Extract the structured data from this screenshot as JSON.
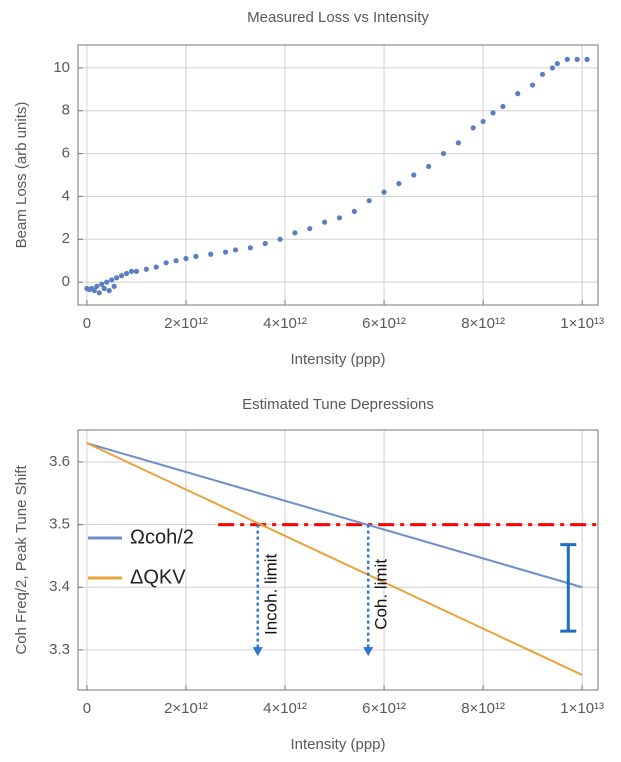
{
  "chart_data": [
    {
      "type": "scatter",
      "title": "Measured Loss vs Intensity",
      "x_label": "Intensity (ppp)",
      "y_label": "Beam Loss (arb units)",
      "xlim": [
        -180000000000.0,
        10320000000000.0
      ],
      "ylim": [
        -1.07,
        11.07
      ],
      "xticks": [
        0,
        {
          "value": 2000000000000.0,
          "label": "2×10¹²"
        },
        {
          "value": 4000000000000.0,
          "label": "4×10¹²"
        },
        {
          "value": 6000000000000.0,
          "label": "6×10¹²"
        },
        {
          "value": 8000000000000.0,
          "label": "8×10¹²"
        },
        {
          "value": 10000000000000.0,
          "label": "1×10¹³"
        }
      ],
      "yticks": [
        0,
        2,
        4,
        6,
        8,
        10
      ],
      "grid": true,
      "color": "#5b7ec2",
      "x": [
        0,
        50000000000.0,
        100000000000.0,
        150000000000.0,
        200000000000.0,
        250000000000.0,
        300000000000.0,
        350000000000.0,
        400000000000.0,
        450000000000.0,
        500000000000.0,
        550000000000.0,
        600000000000.0,
        700000000000.0,
        800000000000.0,
        900000000000.0,
        1000000000000.0,
        1200000000000.0,
        1400000000000.0,
        1600000000000.0,
        1800000000000.0,
        2000000000000.0,
        2200000000000.0,
        2500000000000.0,
        2800000000000.0,
        3000000000000.0,
        3300000000000.0,
        3600000000000.0,
        3900000000000.0,
        4200000000000.0,
        4500000000000.0,
        4800000000000.0,
        5100000000000.0,
        5400000000000.0,
        5700000000000.0,
        6000000000000.0,
        6300000000000.0,
        6600000000000.0,
        6900000000000.0,
        7200000000000.0,
        7500000000000.0,
        7800000000000.0,
        8000000000000.0,
        8200000000000.0,
        8400000000000.0,
        8700000000000.0,
        9000000000000.0,
        9200000000000.0,
        9400000000000.0,
        9500000000000.0,
        9700000000000.0,
        9900000000000.0,
        10100000000000.0
      ],
      "values": [
        -0.3,
        -0.35,
        -0.3,
        -0.4,
        -0.2,
        -0.5,
        -0.1,
        -0.3,
        0,
        -0.4,
        0.1,
        -0.2,
        0.2,
        0.3,
        0.4,
        0.5,
        0.5,
        0.6,
        0.7,
        0.9,
        1.0,
        1.1,
        1.2,
        1.3,
        1.4,
        1.5,
        1.6,
        1.8,
        2.0,
        2.3,
        2.5,
        2.8,
        3.0,
        3.3,
        3.8,
        4.2,
        4.6,
        5.0,
        5.4,
        6.0,
        6.5,
        7.2,
        7.5,
        7.9,
        8.2,
        8.8,
        9.2,
        9.7,
        10.0,
        10.2,
        10.4,
        10.4,
        10.4
      ]
    },
    {
      "type": "line",
      "title": "Estimated Tune Depressions",
      "x_label": "Intensity (ppp)",
      "y_label": "Coh Freq/2, Peak Tune Shift",
      "xlim": [
        -180000000000.0,
        10320000000000.0
      ],
      "ylim": [
        3.236,
        3.651
      ],
      "xticks": [
        0,
        {
          "value": 2000000000000.0,
          "label": "2×10¹²"
        },
        {
          "value": 4000000000000.0,
          "label": "4×10¹²"
        },
        {
          "value": 6000000000000.0,
          "label": "6×10¹²"
        },
        {
          "value": 8000000000000.0,
          "label": "8×10¹²"
        },
        {
          "value": 10000000000000.0,
          "label": "1×10¹³"
        }
      ],
      "yticks": [
        3.3,
        3.4,
        3.5,
        3.6
      ],
      "grid": true,
      "legend": "left",
      "x": [
        0,
        10000000000000.0
      ],
      "series": [
        {
          "name": "Ωcoh/2",
          "color": "#6f8fc8",
          "values": [
            3.63,
            3.4
          ]
        },
        {
          "name": "ΔQKV",
          "color": "#e8a33c",
          "values": [
            3.63,
            3.26
          ]
        }
      ],
      "hline": {
        "y": 3.5,
        "x": [
          2650000000000.0,
          10300000000000.0
        ],
        "color": "#ff0000"
      },
      "annotations": [
        {
          "text": "Incoh. limit",
          "x": 3450000000000.0,
          "y": [
            3.5,
            3.29
          ]
        },
        {
          "text": "Coh. limit",
          "x": 5680000000000.0,
          "y": [
            3.5,
            3.29
          ]
        }
      ],
      "arrow_color": "#2e75d0",
      "error_bar": {
        "x": 9720000000000.0,
        "y": [
          3.33,
          3.468
        ],
        "color": "#1f6fc0"
      }
    }
  ]
}
